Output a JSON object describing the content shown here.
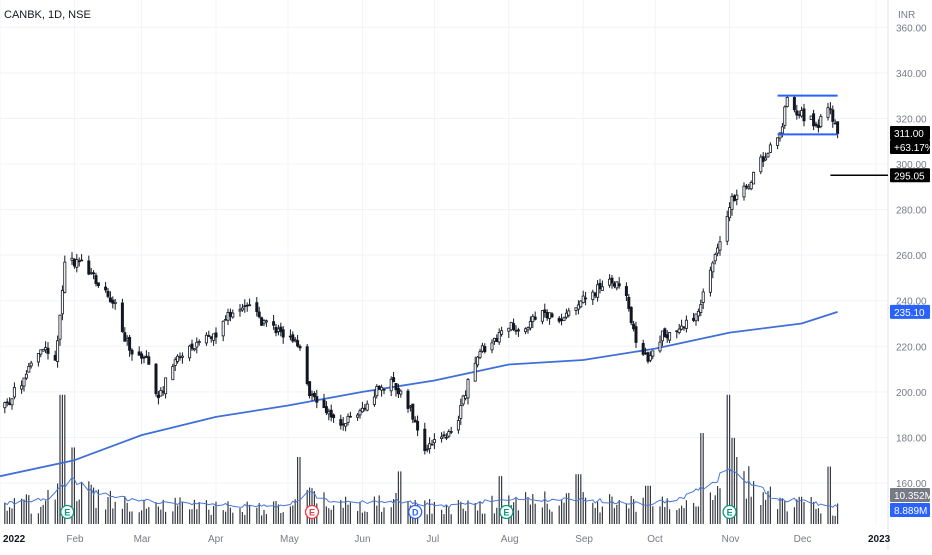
{
  "header": {
    "symbol_label": "CANBK, 1D, NSE"
  },
  "chart_data": {
    "type": "candlestick",
    "currency_label": "INR",
    "price_range": [
      142,
      372
    ],
    "y_ticks": [
      160,
      180,
      200,
      220,
      240,
      260,
      280,
      300,
      320,
      340,
      360
    ],
    "x_range": [
      "2022-01-01",
      "2023-01-06"
    ],
    "x_ticks": [
      {
        "date": "2022-01-01",
        "label": "2022"
      },
      {
        "date": "2022-02-01",
        "label": "Feb"
      },
      {
        "date": "2022-03-01",
        "label": "Mar"
      },
      {
        "date": "2022-04-01",
        "label": "Apr"
      },
      {
        "date": "2022-05-01",
        "label": "May"
      },
      {
        "date": "2022-06-01",
        "label": "Jun"
      },
      {
        "date": "2022-07-01",
        "label": "Jul"
      },
      {
        "date": "2022-08-01",
        "label": "Aug"
      },
      {
        "date": "2022-09-01",
        "label": "Sep"
      },
      {
        "date": "2022-10-01",
        "label": "Oct"
      },
      {
        "date": "2022-11-01",
        "label": "Nov"
      },
      {
        "date": "2022-12-01",
        "label": "Dec"
      },
      {
        "date": "2023-01-01",
        "label": "2023"
      }
    ],
    "close_path": [
      [
        "2022-01-01",
        190
      ],
      [
        "2022-01-10",
        205
      ],
      [
        "2022-01-18",
        220
      ],
      [
        "2022-01-24",
        212
      ],
      [
        "2022-01-28",
        255
      ],
      [
        "2022-02-03",
        258
      ],
      [
        "2022-02-10",
        250
      ],
      [
        "2022-02-17",
        240
      ],
      [
        "2022-02-24",
        218
      ],
      [
        "2022-03-03",
        213
      ],
      [
        "2022-03-08",
        198
      ],
      [
        "2022-03-16",
        215
      ],
      [
        "2022-03-24",
        222
      ],
      [
        "2022-03-31",
        224
      ],
      [
        "2022-04-07",
        235
      ],
      [
        "2022-04-14",
        237
      ],
      [
        "2022-04-21",
        230
      ],
      [
        "2022-04-28",
        226
      ],
      [
        "2022-05-05",
        222
      ],
      [
        "2022-05-10",
        200
      ],
      [
        "2022-05-17",
        190
      ],
      [
        "2022-05-24",
        185
      ],
      [
        "2022-05-31",
        192
      ],
      [
        "2022-06-07",
        200
      ],
      [
        "2022-06-14",
        205
      ],
      [
        "2022-06-20",
        195
      ],
      [
        "2022-06-27",
        176
      ],
      [
        "2022-07-04",
        180
      ],
      [
        "2022-07-11",
        188
      ],
      [
        "2022-07-18",
        215
      ],
      [
        "2022-07-25",
        222
      ],
      [
        "2022-08-01",
        230
      ],
      [
        "2022-08-08",
        228
      ],
      [
        "2022-08-15",
        235
      ],
      [
        "2022-08-22",
        230
      ],
      [
        "2022-08-29",
        237
      ],
      [
        "2022-09-05",
        243
      ],
      [
        "2022-09-12",
        250
      ],
      [
        "2022-09-19",
        242
      ],
      [
        "2022-09-23",
        222
      ],
      [
        "2022-09-28",
        215
      ],
      [
        "2022-10-04",
        225
      ],
      [
        "2022-10-11",
        228
      ],
      [
        "2022-10-18",
        232
      ],
      [
        "2022-10-25",
        255
      ],
      [
        "2022-11-01",
        283
      ],
      [
        "2022-11-08",
        290
      ],
      [
        "2022-11-15",
        303
      ],
      [
        "2022-11-21",
        310
      ],
      [
        "2022-11-25",
        327
      ],
      [
        "2022-12-01",
        322
      ],
      [
        "2022-12-08",
        318
      ],
      [
        "2022-12-13",
        325
      ],
      [
        "2022-12-16",
        311
      ]
    ],
    "moving_average": [
      [
        "2022-01-01",
        163
      ],
      [
        "2022-02-01",
        170
      ],
      [
        "2022-03-01",
        181
      ],
      [
        "2022-04-01",
        189
      ],
      [
        "2022-05-01",
        194
      ],
      [
        "2022-06-01",
        200
      ],
      [
        "2022-07-01",
        205
      ],
      [
        "2022-08-01",
        212
      ],
      [
        "2022-09-01",
        214
      ],
      [
        "2022-10-01",
        219
      ],
      [
        "2022-11-01",
        226
      ],
      [
        "2022-12-01",
        230
      ],
      [
        "2022-12-16",
        235.1
      ]
    ],
    "range_box": {
      "start": "2022-11-21",
      "end": "2022-12-16",
      "upper": 330,
      "lower": 313
    },
    "level_line": {
      "start": "2022-12-13",
      "price": 295.05
    },
    "volume_ylim": [
      0,
      14
    ],
    "volume_spikes": [
      [
        "2022-01-27",
        13.5
      ],
      [
        "2022-01-31",
        8
      ],
      [
        "2022-05-06",
        7
      ],
      [
        "2022-06-17",
        5.5
      ],
      [
        "2022-07-29",
        5
      ],
      [
        "2022-08-30",
        5.2
      ],
      [
        "2022-09-28",
        4
      ],
      [
        "2022-10-21",
        9.5
      ],
      [
        "2022-10-31",
        13.5
      ],
      [
        "2022-11-02",
        9
      ],
      [
        "2022-11-04",
        7
      ],
      [
        "2022-12-12",
        6
      ]
    ],
    "volume_ma": [
      [
        "2022-01-01",
        2.1
      ],
      [
        "2022-01-20",
        2.5
      ],
      [
        "2022-01-31",
        4.5
      ],
      [
        "2022-02-10",
        3.2
      ],
      [
        "2022-03-01",
        2.4
      ],
      [
        "2022-04-01",
        2.0
      ],
      [
        "2022-05-01",
        1.8
      ],
      [
        "2022-05-09",
        3.3
      ],
      [
        "2022-05-20",
        2.2
      ],
      [
        "2022-06-15",
        2.4
      ],
      [
        "2022-07-05",
        1.8
      ],
      [
        "2022-08-01",
        2.6
      ],
      [
        "2022-09-01",
        2.5
      ],
      [
        "2022-09-30",
        2.1
      ],
      [
        "2022-10-15",
        3.0
      ],
      [
        "2022-10-31",
        5.5
      ],
      [
        "2022-11-10",
        4.5
      ],
      [
        "2022-11-20",
        2.6
      ],
      [
        "2022-12-01",
        2.4
      ],
      [
        "2022-12-16",
        1.8
      ]
    ],
    "events": [
      {
        "date": "2022-01-29",
        "label": "E",
        "color": "#089981"
      },
      {
        "date": "2022-05-11",
        "label": "E",
        "color": "#f23645"
      },
      {
        "date": "2022-06-23",
        "label": "D",
        "color": "#2962ff"
      },
      {
        "date": "2022-07-31",
        "label": "E",
        "color": "#089981"
      },
      {
        "date": "2022-11-01",
        "label": "E",
        "color": "#089981"
      }
    ],
    "price_labels": [
      {
        "text": "311.00",
        "price": 311.0,
        "bg": "#000000"
      },
      {
        "text": "+63.17%",
        "price": 311.0,
        "bg": "#000000"
      },
      {
        "text": "295.05",
        "price": 295.05,
        "bg": "#000000"
      },
      {
        "text": "235.10",
        "price": 235.1,
        "bg": "#2962ff"
      },
      {
        "text": "10.352M",
        "bg": "#787b86"
      },
      {
        "text": "8.889M",
        "bg": "#2962ff"
      }
    ],
    "colors": {
      "candle": "#131722",
      "moving_average": "#3f6fd8",
      "volume_ma": "#4a78d8",
      "range_box": "#2962ff",
      "grid": "#f0f3fa",
      "axis_text": "#787b86"
    }
  }
}
